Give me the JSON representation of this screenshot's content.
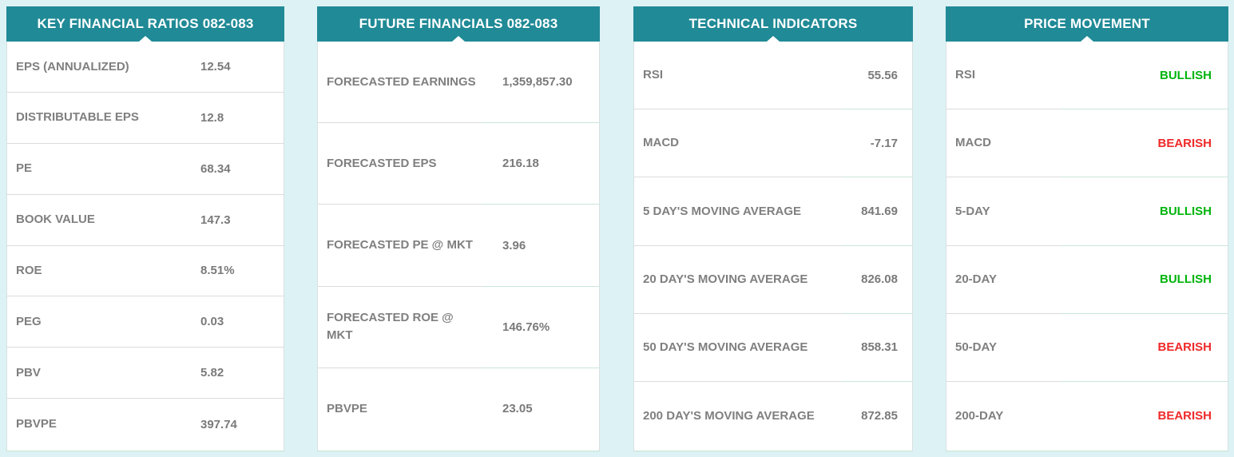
{
  "colors": {
    "page_bg": "#ddf2f5",
    "header_bg": "#208a96",
    "header_text": "#ffffff",
    "label_text": "#7f7f7f",
    "value_text": "#7a7a7a",
    "bullish": "#00b40c",
    "bearish": "#ef2929"
  },
  "panels": [
    {
      "id": "key-financial-ratios",
      "title": "KEY FINANCIAL RATIOS 082-083",
      "rows": [
        {
          "label": "EPS (ANNUALIZED)",
          "value": "12.54"
        },
        {
          "label": "DISTRIBUTABLE EPS",
          "value": "12.8"
        },
        {
          "label": "PE",
          "value": "68.34"
        },
        {
          "label": "BOOK VALUE",
          "value": "147.3"
        },
        {
          "label": "ROE",
          "value": "8.51%"
        },
        {
          "label": "PEG",
          "value": "0.03"
        },
        {
          "label": "PBV",
          "value": "5.82"
        },
        {
          "label": "PBVPE",
          "value": "397.74"
        }
      ]
    },
    {
      "id": "future-financials",
      "title": "FUTURE FINANCIALS 082-083",
      "rows": [
        {
          "label": "FORECASTED EARNINGS",
          "value": "1,359,857.30"
        },
        {
          "label": "FORECASTED EPS",
          "value": "216.18"
        },
        {
          "label": "FORECASTED PE @ MKT",
          "value": "3.96"
        },
        {
          "label": "FORECASTED ROE @ MKT",
          "value": "146.76%"
        },
        {
          "label": "PBVPE",
          "value": "23.05"
        }
      ]
    },
    {
      "id": "technical-indicators",
      "title": "TECHNICAL INDICATORS",
      "rows": [
        {
          "label": "RSI",
          "value": "55.56"
        },
        {
          "label": "MACD",
          "value": "-7.17"
        },
        {
          "label": "5 DAY'S MOVING AVERAGE",
          "value": "841.69"
        },
        {
          "label": "20 DAY'S MOVING AVERAGE",
          "value": "826.08"
        },
        {
          "label": "50 DAY'S MOVING AVERAGE",
          "value": "858.31"
        },
        {
          "label": "200 DAY'S MOVING AVERAGE",
          "value": "872.85"
        }
      ]
    },
    {
      "id": "price-movement",
      "title": "PRICE MOVEMENT",
      "rows": [
        {
          "label": "RSI",
          "value": "BULLISH",
          "sentiment": "bullish"
        },
        {
          "label": "MACD",
          "value": "BEARISH",
          "sentiment": "bearish"
        },
        {
          "label": "5-DAY",
          "value": "BULLISH",
          "sentiment": "bullish"
        },
        {
          "label": "20-DAY",
          "value": "BULLISH",
          "sentiment": "bullish"
        },
        {
          "label": "50-DAY",
          "value": "BEARISH",
          "sentiment": "bearish"
        },
        {
          "label": "200-DAY",
          "value": "BEARISH",
          "sentiment": "bearish"
        }
      ]
    }
  ]
}
